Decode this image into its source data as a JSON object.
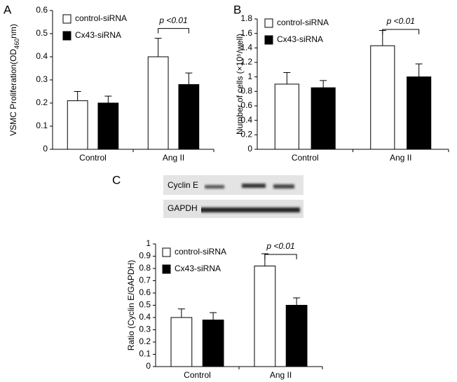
{
  "chart_data": [
    {
      "type": "bar",
      "panel": "A",
      "ylabel": [
        "VSMC Proliferation(OD",
        "460",
        "nm)"
      ],
      "categories": [
        "Control",
        "Ang II"
      ],
      "series": [
        {
          "name": "control-siRNA",
          "color": "#ffffff",
          "values": [
            0.21,
            0.4
          ],
          "errors": [
            0.04,
            0.08
          ]
        },
        {
          "name": "Cx43-siRNA",
          "color": "#000000",
          "values": [
            0.2,
            0.28
          ],
          "errors": [
            0.03,
            0.05
          ]
        }
      ],
      "ylim": [
        0,
        0.6
      ],
      "yticks": [
        0,
        0.1,
        0.2,
        0.3,
        0.4,
        0.5,
        0.6
      ],
      "annotation": "p <0.01"
    },
    {
      "type": "bar",
      "panel": "B",
      "ylabel": [
        "Number of cells (×10⁵/well)"
      ],
      "categories": [
        "Control",
        "Ang II"
      ],
      "series": [
        {
          "name": "control-siRNA",
          "color": "#ffffff",
          "values": [
            0.9,
            1.43
          ],
          "errors": [
            0.16,
            0.21
          ]
        },
        {
          "name": "Cx43-siRNA",
          "color": "#000000",
          "values": [
            0.85,
            1.0
          ],
          "errors": [
            0.1,
            0.18
          ]
        }
      ],
      "ylim": [
        0,
        1.8
      ],
      "yticks": [
        0,
        0.2,
        0.4,
        0.6,
        0.8,
        1,
        1.2,
        1.4,
        1.6,
        1.8
      ],
      "annotation": "p <0.01"
    },
    {
      "type": "bar",
      "panel": "C",
      "ylabel": [
        "Ratio (Cyclin E/GAPDH)"
      ],
      "categories": [
        "Control",
        "Ang II"
      ],
      "series": [
        {
          "name": "control-siRNA",
          "color": "#ffffff",
          "values": [
            0.4,
            0.82
          ],
          "errors": [
            0.07,
            0.1
          ]
        },
        {
          "name": "Cx43-siRNA",
          "color": "#000000",
          "values": [
            0.38,
            0.5
          ],
          "errors": [
            0.06,
            0.06
          ]
        }
      ],
      "ylim": [
        0,
        1
      ],
      "yticks": [
        0,
        0.1,
        0.2,
        0.3,
        0.4,
        0.5,
        0.6,
        0.7,
        0.8,
        0.9,
        1
      ],
      "annotation": "p <0.01"
    }
  ],
  "blot": {
    "labels": [
      "Cyclin E",
      "GAPDH"
    ]
  }
}
